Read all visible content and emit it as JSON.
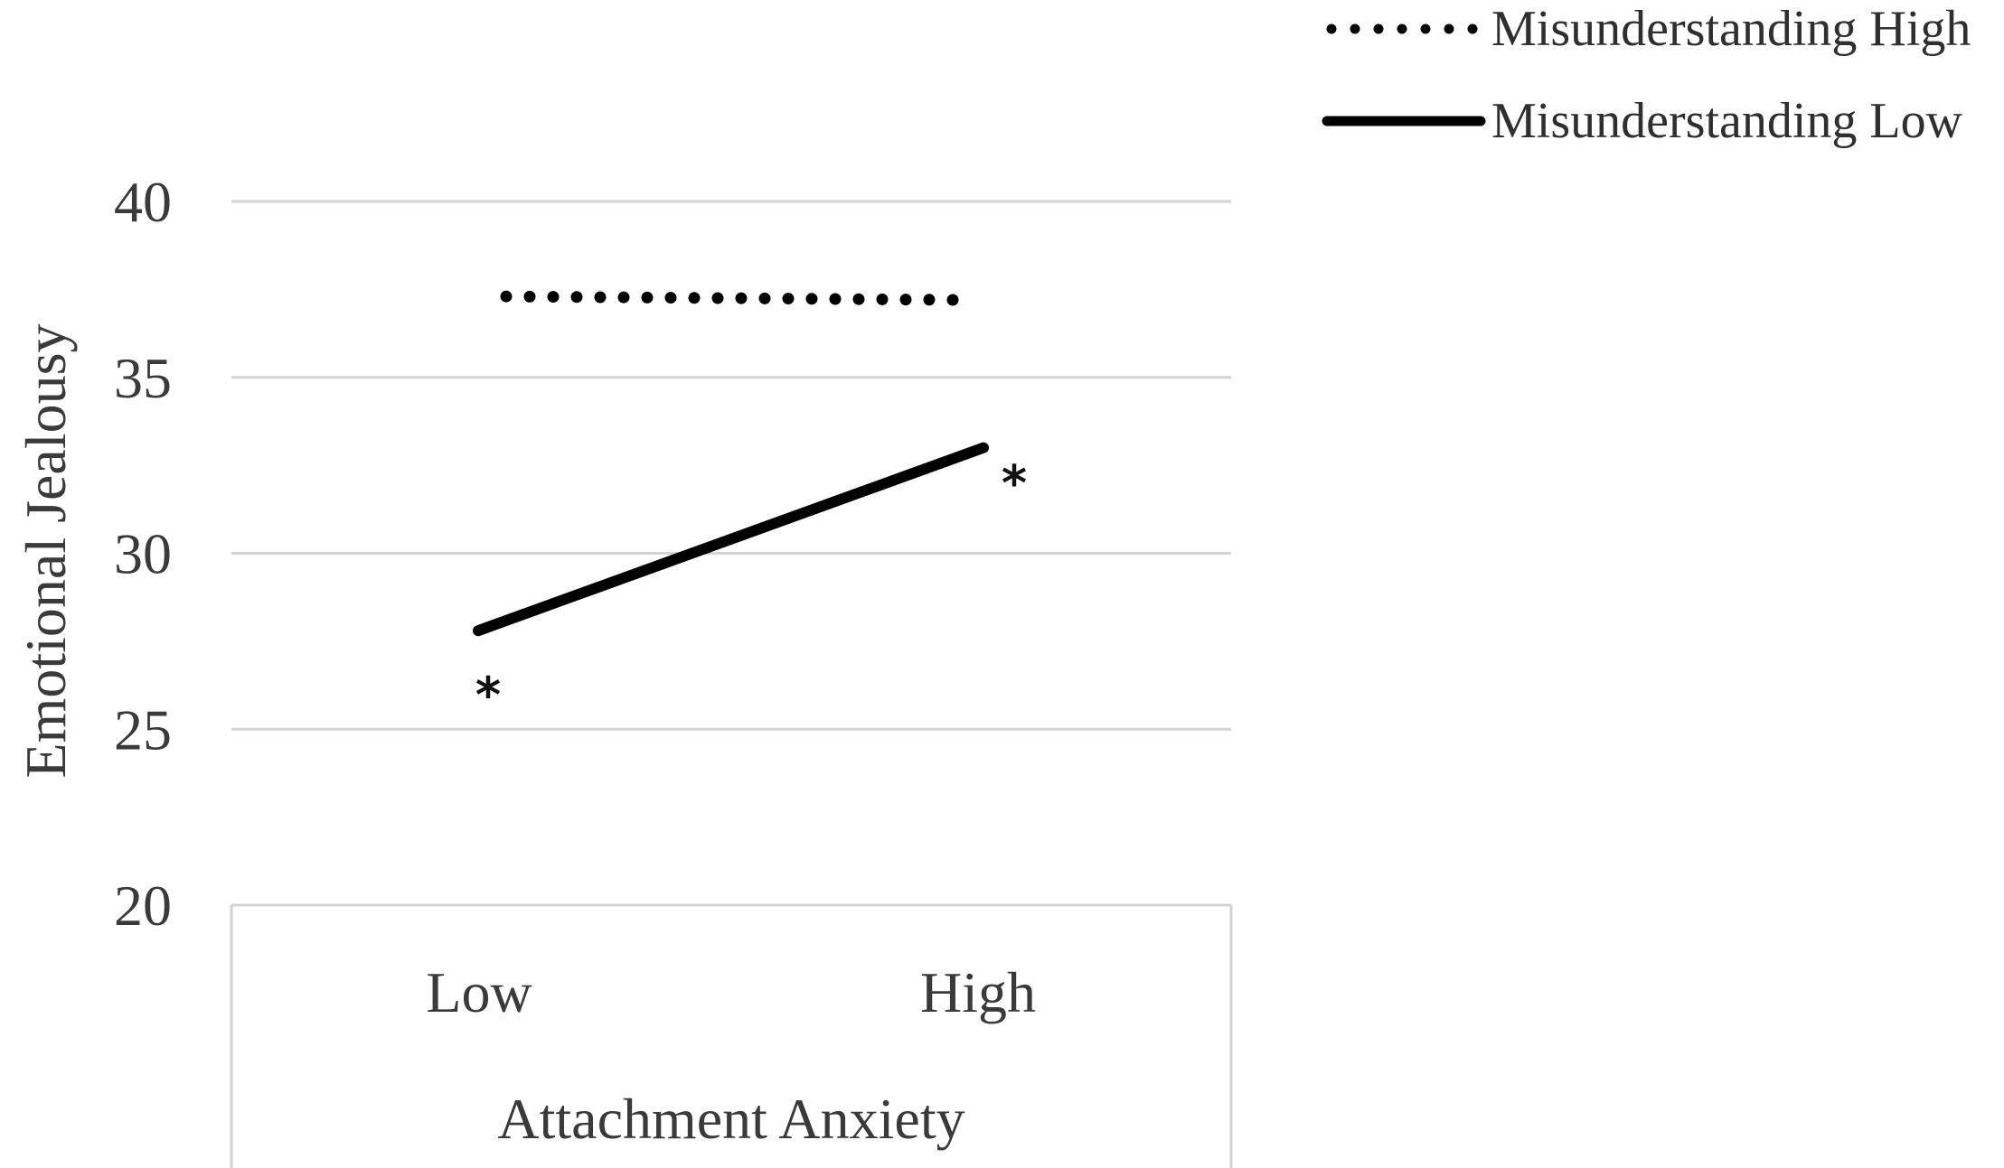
{
  "chart_data": {
    "type": "line",
    "categories": [
      "Low",
      "High"
    ],
    "series": [
      {
        "name": "Misunderstanding High",
        "values": [
          37.3,
          37.2
        ],
        "style": "dotted",
        "color": "#000000"
      },
      {
        "name": "Misunderstanding Low",
        "values": [
          27.8,
          33.0
        ],
        "style": "solid",
        "color": "#000000"
      }
    ],
    "title": "",
    "xlabel": "Attachment Anxiety",
    "ylabel": "Emotional Jealousy",
    "ylim": [
      20,
      40
    ],
    "yticks": [
      "20",
      "25",
      "30",
      "35",
      "40"
    ],
    "grid": true,
    "legend_position": "top-right",
    "annotations": [
      "*",
      "*"
    ]
  }
}
